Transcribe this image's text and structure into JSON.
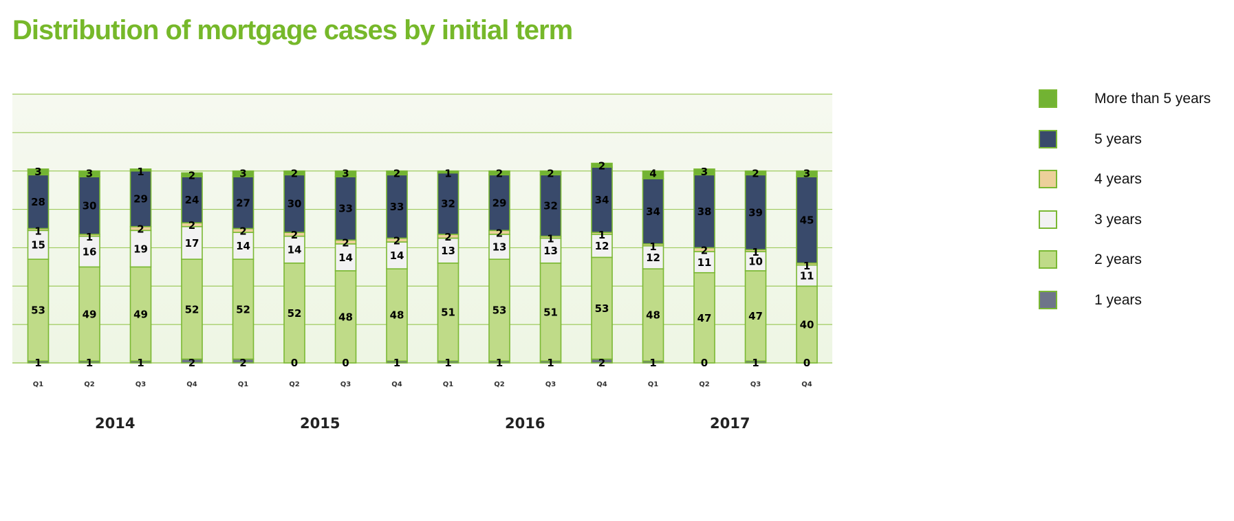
{
  "title": "Distribution of mortgage cases by initial term",
  "chart_data": {
    "type": "bar",
    "stacked": true,
    "title": "Distribution of mortgage cases by initial term",
    "xlabel": "",
    "ylabel": "",
    "ylim": [
      0,
      140
    ],
    "grid": true,
    "legend_position": "right",
    "categories": [
      "2014 Q1",
      "2014 Q2",
      "2014 Q3",
      "2014 Q4",
      "2015 Q1",
      "2015 Q2",
      "2015 Q3",
      "2015 Q4",
      "2016 Q1",
      "2016 Q2",
      "2016 Q3",
      "2016 Q4",
      "2017 Q1",
      "2017 Q2",
      "2017 Q3",
      "2017 Q4"
    ],
    "quarter_labels": [
      "Q1",
      "Q2",
      "Q3",
      "Q4",
      "Q1",
      "Q2",
      "Q3",
      "Q4",
      "Q1",
      "Q2",
      "Q3",
      "Q4",
      "Q1",
      "Q2",
      "Q3",
      "Q4"
    ],
    "year_labels": [
      "2014",
      "2015",
      "2016",
      "2017"
    ],
    "series": [
      {
        "name": "1 years",
        "color": "#6e7589",
        "values": [
          1,
          1,
          1,
          2,
          2,
          0,
          0,
          1,
          1,
          1,
          1,
          2,
          1,
          0,
          1,
          0
        ]
      },
      {
        "name": "2 years",
        "color": "#bfdb88",
        "values": [
          53,
          49,
          49,
          52,
          52,
          52,
          48,
          48,
          51,
          53,
          51,
          53,
          48,
          47,
          47,
          40
        ]
      },
      {
        "name": "3 years",
        "color": "#f2f2f2",
        "values": [
          15,
          16,
          19,
          17,
          14,
          14,
          14,
          14,
          13,
          13,
          13,
          12,
          12,
          11,
          10,
          11
        ]
      },
      {
        "name": "4 years",
        "color": "#ecd09a",
        "values": [
          1,
          1,
          2,
          2,
          2,
          2,
          2,
          2,
          2,
          2,
          1,
          1,
          1,
          2,
          1,
          1
        ]
      },
      {
        "name": "5 years",
        "color": "#394a6b",
        "values": [
          28,
          30,
          29,
          24,
          27,
          30,
          33,
          33,
          32,
          29,
          32,
          34,
          34,
          38,
          39,
          45
        ]
      },
      {
        "name": "More than 5 years",
        "color": "#72b333",
        "values": [
          3,
          3,
          1,
          2,
          3,
          2,
          3,
          2,
          1,
          2,
          2,
          2,
          4,
          3,
          2,
          3
        ]
      }
    ]
  },
  "legend": [
    {
      "label": "More than 5 years",
      "color": "#72b333"
    },
    {
      "label": "5 years",
      "color": "#394a6b"
    },
    {
      "label": "4 years",
      "color": "#ecd09a"
    },
    {
      "label": "3 years",
      "color": "#f2f2f2"
    },
    {
      "label": "2 years",
      "color": "#bfdb88"
    },
    {
      "label": "1 years",
      "color": "#6e7589"
    }
  ],
  "colors": {
    "title": "#76b82a",
    "gridline": "#9fcb5e",
    "bar_outline": "#7ab833",
    "plot_bg_top": "#f6f9f0",
    "plot_bg_bottom": "#eef6e4"
  }
}
